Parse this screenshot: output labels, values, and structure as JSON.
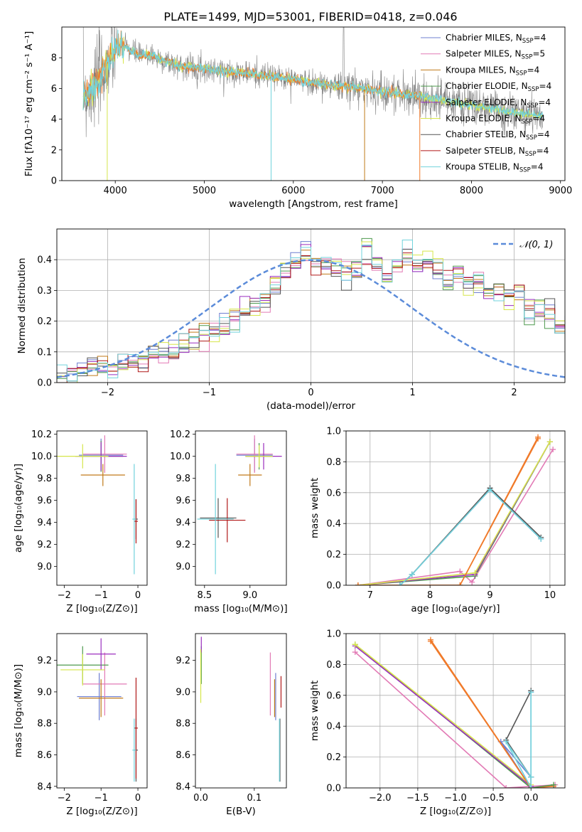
{
  "figure_title": "PLATE=1499, MJD=53001, FIBERID=0418, z=0.046",
  "colors": {
    "Chabrier MILES": "#6f7fd0",
    "Salpeter MILES": "#e27ab5",
    "Kroupa MILES": "#c07a1a",
    "Chabrier ELODIE": "#4e9a4e",
    "Salpeter ELODIE": "#9b2fbf",
    "Kroupa ELODIE": "#d6e64a",
    "Chabrier STELIB": "#555555",
    "Salpeter STELIB": "#b01818",
    "Kroupa STELIB": "#72d3dc",
    "normal": "#5b8bd9",
    "orange": "#f07a2a"
  },
  "chart_data": [
    {
      "id": "spectrum",
      "type": "line",
      "title": "PLATE=1499, MJD=53001, FIBERID=0418, z=0.046",
      "xlabel": "wavelength [Angstrom, rest frame]",
      "ylabel": "Flux [fλ10⁻¹⁷ erg cm⁻² s⁻¹ A⁻¹]",
      "xlim": [
        3400,
        9050
      ],
      "ylim": [
        0,
        10
      ],
      "xticks": [
        "4000",
        "5000",
        "6000",
        "7000",
        "8000",
        "9000"
      ],
      "yticks": [
        "0",
        "2",
        "4",
        "6",
        "8"
      ],
      "grid": false,
      "legend_position": "top-right",
      "legend": [
        {
          "label": "Chabrier MILES, N",
          "sub": "SSP",
          "tail": "=4"
        },
        {
          "label": "Salpeter MILES, N",
          "sub": "SSP",
          "tail": "=5"
        },
        {
          "label": "Kroupa MILES, N",
          "sub": "SSP",
          "tail": "=4"
        },
        {
          "label": "Chabrier ELODIE, N",
          "sub": "SSP",
          "tail": "=4"
        },
        {
          "label": "Salpeter ELODIE, N",
          "sub": "SSP",
          "tail": "=4"
        },
        {
          "label": "Kroupa ELODIE, N",
          "sub": "SSP",
          "tail": "=4"
        },
        {
          "label": "Chabrier STELIB, N",
          "sub": "SSP",
          "tail": "=4"
        },
        {
          "label": "Salpeter STELIB, N",
          "sub": "SSP",
          "tail": "=4"
        },
        {
          "label": "Kroupa STELIB, N",
          "sub": "SSP",
          "tail": "=4"
        }
      ],
      "data_envelope": {
        "wavelength": [
          3640,
          3700,
          3800,
          3900,
          4000,
          4100,
          4200,
          4300,
          4400,
          4500,
          4700,
          5000,
          5300,
          5600,
          6000,
          6300,
          6600,
          7000,
          7400,
          7800,
          8200,
          8500,
          8800
        ],
        "flux": [
          5.8,
          5.6,
          6.4,
          7.5,
          8.6,
          8.7,
          8.4,
          8.1,
          8.2,
          7.9,
          7.5,
          7.3,
          7.1,
          6.9,
          6.6,
          6.3,
          6.1,
          5.8,
          5.5,
          5.1,
          4.7,
          4.4,
          4.2
        ]
      }
    },
    {
      "id": "residuals",
      "type": "histogram",
      "xlabel": "(data-model)/error",
      "ylabel": "Normed distribution",
      "xlim": [
        -2.5,
        2.5
      ],
      "ylim": [
        0,
        0.5
      ],
      "xticks": [
        "−2",
        "−1",
        "0",
        "1",
        "2"
      ],
      "yticks": [
        "0.0",
        "0.1",
        "0.2",
        "0.3",
        "0.4"
      ],
      "grid": true,
      "legend_position": "top-right",
      "legend_label": "𝒩(0, 1)",
      "bin_width": 0.1,
      "bins_start": -2.5,
      "mean_histogram": [
        0.02,
        0.03,
        0.04,
        0.05,
        0.05,
        0.05,
        0.06,
        0.06,
        0.07,
        0.09,
        0.1,
        0.11,
        0.13,
        0.14,
        0.16,
        0.17,
        0.18,
        0.2,
        0.22,
        0.25,
        0.27,
        0.31,
        0.35,
        0.39,
        0.42,
        0.37,
        0.38,
        0.37,
        0.36,
        0.38,
        0.42,
        0.39,
        0.34,
        0.38,
        0.41,
        0.37,
        0.39,
        0.37,
        0.33,
        0.35,
        0.32,
        0.33,
        0.29,
        0.3,
        0.27,
        0.3,
        0.23,
        0.24,
        0.22,
        0.18,
        0.17,
        0.15,
        0.13,
        0.11,
        0.09,
        0.09,
        0.07,
        0.06,
        0.05,
        0.04,
        0.03,
        0.03,
        0.02,
        0.02
      ],
      "normal_curve": {
        "mu": 0,
        "sigma": 1
      }
    },
    {
      "id": "age_vs_Z",
      "type": "scatter",
      "xlabel": "Z [log₁₀(Z/Z⊙)]",
      "ylabel": "age  [log₁₀(age/yr)]",
      "xlim": [
        -2.2,
        0.25
      ],
      "ylim": [
        8.83,
        10.23
      ],
      "xticks": [
        "−2",
        "−1",
        "0"
      ],
      "yticks": [
        "9.0",
        "9.2",
        "9.4",
        "9.6",
        "9.8",
        "10.0",
        "10.2"
      ],
      "points": [
        {
          "x": -1.0,
          "y": 10.01,
          "xerr": 0.6,
          "yerr": 0.15,
          "model": "Chabrier MILES"
        },
        {
          "x": -0.9,
          "y": 10.02,
          "xerr": 0.6,
          "yerr": 0.17,
          "model": "Salpeter MILES"
        },
        {
          "x": -0.95,
          "y": 9.83,
          "xerr": 0.6,
          "yerr": 0.1,
          "model": "Kroupa MILES"
        },
        {
          "x": -1.0,
          "y": 10.0,
          "xerr": 0.6,
          "yerr": 0.14,
          "model": "Chabrier ELODIE"
        },
        {
          "x": -1.0,
          "y": 10.0,
          "xerr": 0.7,
          "yerr": 0.13,
          "model": "Salpeter ELODIE"
        },
        {
          "x": -1.5,
          "y": 10.0,
          "xerr": 0.7,
          "yerr": 0.11,
          "model": "Kroupa ELODIE"
        },
        {
          "x": -0.05,
          "y": 9.43,
          "xerr": 0.05,
          "yerr": 0.18,
          "model": "Chabrier STELIB"
        },
        {
          "x": -0.05,
          "y": 9.41,
          "xerr": 0.05,
          "yerr": 0.2,
          "model": "Salpeter STELIB"
        },
        {
          "x": -0.1,
          "y": 9.43,
          "xerr": 0.05,
          "yerr": 0.5,
          "model": "Kroupa STELIB"
        }
      ]
    },
    {
      "id": "age_vs_mass",
      "type": "scatter",
      "xlabel": "mass [log₁₀(M/M⊙)]",
      "ylabel": "",
      "xlim": [
        8.4,
        9.4
      ],
      "ylim": [
        8.83,
        10.23
      ],
      "xticks": [
        "8.5",
        "9.0"
      ],
      "yticks": [
        "9.0",
        "9.2",
        "9.4",
        "9.6",
        "9.8",
        "10.0",
        "10.2"
      ],
      "points": [
        {
          "x": 9.05,
          "y": 10.01,
          "xerr": 0.2,
          "yerr": 0.15,
          "model": "Chabrier MILES"
        },
        {
          "x": 9.05,
          "y": 10.02,
          "xerr": 0.2,
          "yerr": 0.17,
          "model": "Salpeter MILES"
        },
        {
          "x": 9.0,
          "y": 9.83,
          "xerr": 0.13,
          "yerr": 0.1,
          "model": "Kroupa MILES"
        },
        {
          "x": 9.1,
          "y": 10.0,
          "xerr": 0.15,
          "yerr": 0.12,
          "model": "Chabrier ELODIE"
        },
        {
          "x": 9.15,
          "y": 10.0,
          "xerr": 0.2,
          "yerr": 0.12,
          "model": "Salpeter ELODIE"
        },
        {
          "x": 9.1,
          "y": 10.0,
          "xerr": 0.15,
          "yerr": 0.1,
          "model": "Kroupa ELODIE"
        },
        {
          "x": 8.65,
          "y": 9.44,
          "xerr": 0.2,
          "yerr": 0.18,
          "model": "Chabrier STELIB"
        },
        {
          "x": 8.75,
          "y": 9.42,
          "xerr": 0.2,
          "yerr": 0.2,
          "model": "Salpeter STELIB"
        },
        {
          "x": 8.62,
          "y": 9.43,
          "xerr": 0.2,
          "yerr": 0.5,
          "model": "Kroupa STELIB"
        }
      ]
    },
    {
      "id": "mass_weight_vs_age",
      "type": "line",
      "xlabel": "age  [log₁₀(age/yr)]",
      "ylabel": "mass weight",
      "xlim": [
        6.6,
        10.25
      ],
      "ylim": [
        0,
        1.0
      ],
      "xticks": [
        "7",
        "8",
        "9",
        "10"
      ],
      "yticks": [
        "0.0",
        "0.2",
        "0.4",
        "0.6",
        "0.8",
        "1.0"
      ],
      "grid": true,
      "series": [
        {
          "model": "Chabrier MILES",
          "x": [
            7.5,
            7.7,
            9.0,
            9.85
          ],
          "y": [
            0.0,
            0.07,
            0.62,
            0.3
          ]
        },
        {
          "model": "Salpeter MILES",
          "x": [
            6.8,
            8.5,
            8.7,
            10.05
          ],
          "y": [
            0.0,
            0.09,
            0.02,
            0.88
          ]
        },
        {
          "model": "Kroupa MILES",
          "x": [
            6.8,
            8.5,
            9.8
          ],
          "y": [
            0.0,
            0.0,
            0.96
          ]
        },
        {
          "model": "Chabrier ELODIE",
          "x": [
            6.8,
            8.75,
            10.0
          ],
          "y": [
            0.0,
            0.06,
            0.93
          ]
        },
        {
          "model": "Salpeter ELODIE",
          "x": [
            6.8,
            8.75,
            10.0
          ],
          "y": [
            0.0,
            0.07,
            0.93
          ]
        },
        {
          "model": "Kroupa ELODIE",
          "x": [
            6.8,
            8.75,
            10.0
          ],
          "y": [
            0.0,
            0.08,
            0.93
          ]
        },
        {
          "model": "Chabrier STELIB",
          "x": [
            7.5,
            7.7,
            9.0,
            9.85
          ],
          "y": [
            0.0,
            0.07,
            0.63,
            0.31
          ]
        },
        {
          "model": "Salpeter STELIB",
          "x": [
            6.8,
            8.5,
            9.8
          ],
          "y": [
            0.0,
            0.0,
            0.95
          ]
        },
        {
          "model": "Kroupa STELIB",
          "x": [
            7.5,
            7.7,
            9.0,
            9.85
          ],
          "y": [
            0.0,
            0.07,
            0.62,
            0.3
          ]
        }
      ]
    },
    {
      "id": "mass_vs_Z",
      "type": "scatter",
      "xlabel": "Z [log₁₀(Z/Z⊙)]",
      "ylabel": "mass [log₁₀(M/M⊙)]",
      "xlim": [
        -2.2,
        0.25
      ],
      "ylim": [
        8.39,
        9.37
      ],
      "xticks": [
        "−2",
        "−1",
        "0"
      ],
      "yticks": [
        "8.4",
        "8.6",
        "8.8",
        "9.0",
        "9.2"
      ],
      "points": [
        {
          "x": -1.05,
          "y": 8.97,
          "xerr": 0.6,
          "yerr": 0.15,
          "model": "Chabrier MILES"
        },
        {
          "x": -0.9,
          "y": 9.05,
          "xerr": 0.6,
          "yerr": 0.2,
          "model": "Salpeter MILES"
        },
        {
          "x": -1.0,
          "y": 8.96,
          "xerr": 0.6,
          "yerr": 0.12,
          "model": "Kroupa MILES"
        },
        {
          "x": -1.5,
          "y": 9.17,
          "xerr": 0.7,
          "yerr": 0.12,
          "model": "Chabrier ELODIE"
        },
        {
          "x": -1.0,
          "y": 9.24,
          "xerr": 0.4,
          "yerr": 0.1,
          "model": "Salpeter ELODIE"
        },
        {
          "x": -1.5,
          "y": 9.14,
          "xerr": 0.6,
          "yerr": 0.1,
          "model": "Kroupa ELODIE"
        },
        {
          "x": -0.05,
          "y": 8.63,
          "xerr": 0.05,
          "yerr": 0.2,
          "model": "Chabrier STELIB"
        },
        {
          "x": -0.05,
          "y": 8.77,
          "xerr": 0.05,
          "yerr": 0.32,
          "model": "Salpeter STELIB"
        },
        {
          "x": -0.1,
          "y": 8.63,
          "xerr": 0.05,
          "yerr": 0.2,
          "model": "Kroupa STELIB"
        }
      ]
    },
    {
      "id": "mass_vs_EBV",
      "type": "scatter",
      "xlabel": "E(B-V)",
      "ylabel": "",
      "xlim": [
        -0.01,
        0.16
      ],
      "ylim": [
        8.39,
        9.37
      ],
      "xticks": [
        "0.0",
        "0.1"
      ],
      "yticks": [
        "8.4",
        "8.6",
        "8.8",
        "9.0",
        "9.2"
      ],
      "points": [
        {
          "x": 0.14,
          "y": 8.97,
          "yerr": 0.15,
          "model": "Chabrier MILES"
        },
        {
          "x": 0.13,
          "y": 9.05,
          "yerr": 0.2,
          "model": "Salpeter MILES"
        },
        {
          "x": 0.138,
          "y": 8.96,
          "yerr": 0.12,
          "model": "Kroupa MILES"
        },
        {
          "x": 0.001,
          "y": 9.17,
          "yerr": 0.12,
          "model": "Chabrier ELODIE"
        },
        {
          "x": 0.001,
          "y": 9.3,
          "yerr": 0.05,
          "model": "Salpeter ELODIE"
        },
        {
          "x": 0.0,
          "y": 9.1,
          "yerr": 0.17,
          "model": "Kroupa ELODIE"
        },
        {
          "x": 0.148,
          "y": 8.63,
          "yerr": 0.2,
          "model": "Chabrier STELIB"
        },
        {
          "x": 0.15,
          "y": 9.0,
          "yerr": 0.1,
          "model": "Salpeter STELIB"
        },
        {
          "x": 0.147,
          "y": 8.63,
          "yerr": 0.2,
          "model": "Kroupa STELIB"
        }
      ]
    },
    {
      "id": "mass_weight_vs_Z",
      "type": "line",
      "xlabel": "Z [log₁₀(Z/Z⊙)]",
      "ylabel": "mass weight",
      "xlim": [
        -2.45,
        0.45
      ],
      "ylim": [
        0,
        1.0
      ],
      "xticks": [
        "−2.0",
        "−1.5",
        "−1.0",
        "−0.5",
        "0.0"
      ],
      "yticks": [
        "0.0",
        "0.2",
        "0.4",
        "0.6",
        "0.8",
        "1.0"
      ],
      "grid": true,
      "series": [
        {
          "model": "Chabrier MILES",
          "x": [
            0.0,
            0.0,
            -0.4,
            0.0,
            0.0
          ],
          "y": [
            0.62,
            0.07,
            0.3,
            0.0,
            0.07
          ]
        },
        {
          "model": "Salpeter MILES",
          "x": [
            -2.33,
            -0.33,
            0.32,
            0.0
          ],
          "y": [
            0.88,
            0.0,
            0.02,
            0.0
          ]
        },
        {
          "model": "Kroupa MILES",
          "x": [
            -1.33,
            0.0,
            0.3
          ],
          "y": [
            0.96,
            0.0,
            0.01
          ]
        },
        {
          "model": "Chabrier ELODIE",
          "x": [
            -2.33,
            0.0,
            0.3
          ],
          "y": [
            0.93,
            0.0,
            0.02
          ]
        },
        {
          "model": "Salpeter ELODIE",
          "x": [
            -2.33,
            0.0
          ],
          "y": [
            0.92,
            0.01
          ]
        },
        {
          "model": "Kroupa ELODIE",
          "x": [
            -2.33,
            0.0
          ],
          "y": [
            0.93,
            0.02
          ]
        },
        {
          "model": "Chabrier STELIB",
          "x": [
            0.0,
            -0.33,
            0.0,
            0.0
          ],
          "y": [
            0.63,
            0.31,
            0.07,
            0.0
          ]
        },
        {
          "model": "Salpeter STELIB",
          "x": [
            -1.33,
            0.0
          ],
          "y": [
            0.95,
            0.0
          ]
        },
        {
          "model": "Kroupa STELIB",
          "x": [
            0.0,
            0.0,
            -0.33,
            0.0
          ],
          "y": [
            0.62,
            0.0,
            0.3,
            0.07
          ]
        }
      ]
    }
  ]
}
